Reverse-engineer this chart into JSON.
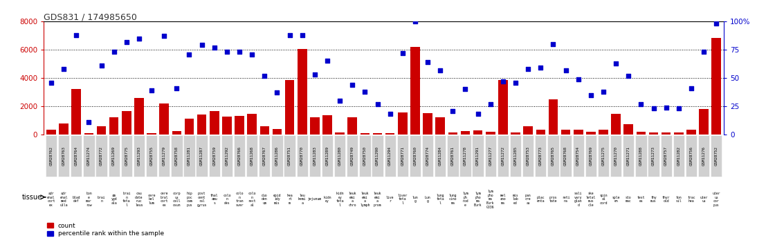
{
  "title": "GDS831 / 174985650",
  "samples": [
    "GSM28762",
    "GSM28763",
    "GSM28764",
    "GSM11274",
    "GSM28772",
    "GSM11269",
    "GSM28775",
    "GSM11293",
    "GSM28755",
    "GSM11279",
    "GSM28758",
    "GSM11281",
    "GSM11287",
    "GSM28759",
    "GSM11292",
    "GSM28766",
    "GSM11268",
    "GSM28767",
    "GSM11286",
    "GSM28751",
    "GSM28770",
    "GSM11283",
    "GSM11289",
    "GSM11280",
    "GSM28749",
    "GSM28750",
    "GSM11290",
    "GSM11294",
    "GSM28771",
    "GSM28760",
    "GSM28774",
    "GSM11284",
    "GSM28761",
    "GSM11278",
    "GSM11291",
    "GSM11277",
    "GSM11272",
    "GSM11285",
    "GSM28753",
    "GSM28773",
    "GSM28765",
    "GSM28768",
    "GSM28754",
    "GSM28769",
    "GSM11275",
    "GSM11270",
    "GSM11271",
    "GSM11288",
    "GSM11273",
    "GSM28757",
    "GSM11282",
    "GSM28756",
    "GSM11276",
    "GSM28752"
  ],
  "tissues": [
    "adr\nenal\ncort\nex",
    "adr\nenal\nmed\nulla",
    "blad\ndef",
    "bon\ne\nmar\nrow",
    "brai\nn",
    "am\nygd\nala",
    "brai\nn\nfeta\nl",
    "cau\ndate\nnuc\nleus",
    "cere\nbel\nlum",
    "cere\nbral\ncort\nex",
    "corp\nus\ncall\nosun",
    "hip\npoc\ncam\npus",
    "post\ncent\nral\ngyrus",
    "thal\namu\ns",
    "colo\nn\ndes",
    "colo\nn\ntran\nsver",
    "colo\nn\nrect\nal",
    "duo\nden\num",
    "epid\nidy\nmis",
    "hea\nrt\nm",
    "leu\nkemi\na",
    "jejunum",
    "kidn\ney",
    "kidn\ney\nfeta\nl",
    "leuk\nemi\na\nchro",
    "leuk\nemi\na\nlymph",
    "leuk\nemi\na\nprom",
    "live\nr",
    "liver\nfeta\nl",
    "lun\ng",
    "Lun\ng",
    "lung\nfeta\nl",
    "lung\ncino\nma",
    "lym\nph\nnod\ne",
    "lym\npho\nma\nBurk",
    "lym\npho\nma\nBurk\nG336",
    "mel\nano\nma",
    "mis\nlab\ned",
    "pan\ncre\nas",
    "plac\nenta",
    "pros\ntate",
    "reti\nna",
    "sali\nvary\nglan\nd",
    "ske\nletal\nmus\ncle",
    "spin\nal\ncord",
    "sple\nen",
    "sto\nmac",
    "test\nes",
    "thy\nmus",
    "thyr\noid",
    "ton\nsil",
    "trac\nhea",
    "uter\nus",
    "uter\nus\ncor\npus"
  ],
  "counts": [
    350,
    800,
    3200,
    100,
    600,
    1200,
    1650,
    2600,
    80,
    2200,
    250,
    1100,
    1400,
    1650,
    1250,
    1300,
    1450,
    600,
    400,
    3850,
    6050,
    1200,
    1350,
    150,
    1200,
    80,
    80,
    100,
    1550,
    6200,
    1500,
    1200,
    150,
    250,
    300,
    200,
    3850,
    150,
    600,
    350,
    2500,
    350,
    350,
    200,
    350,
    1450,
    750,
    200,
    150,
    150,
    150,
    350,
    1800,
    6850
  ],
  "percentiles": [
    46,
    58,
    88,
    11,
    61,
    73,
    82,
    85,
    39,
    87,
    41,
    71,
    79,
    77,
    73,
    73,
    71,
    52,
    37,
    88,
    88,
    53,
    65,
    30,
    44,
    38,
    27,
    18,
    72,
    100,
    64,
    57,
    21,
    40,
    18,
    27,
    47,
    46,
    58,
    59,
    80,
    57,
    49,
    35,
    38,
    63,
    52,
    27,
    23,
    24,
    23,
    41,
    73,
    98
  ],
  "bar_color": "#cc0000",
  "dot_color": "#0000cc",
  "ylim_left": [
    0,
    8000
  ],
  "ylim_right": [
    0,
    100
  ],
  "yticks_left": [
    0,
    2000,
    4000,
    6000,
    8000
  ],
  "yticks_right": [
    0,
    25,
    50,
    75,
    100
  ],
  "grid_values": [
    2000,
    4000,
    6000
  ],
  "bg_color": "#ffffff",
  "tissue_bg": "#c8e6c9",
  "label_bg": "#d0d0d0",
  "title_color": "#333333",
  "axis_color_left": "#cc0000",
  "axis_color_right": "#0000cc",
  "legend_items": [
    "count",
    "percentile rank within the sample"
  ]
}
